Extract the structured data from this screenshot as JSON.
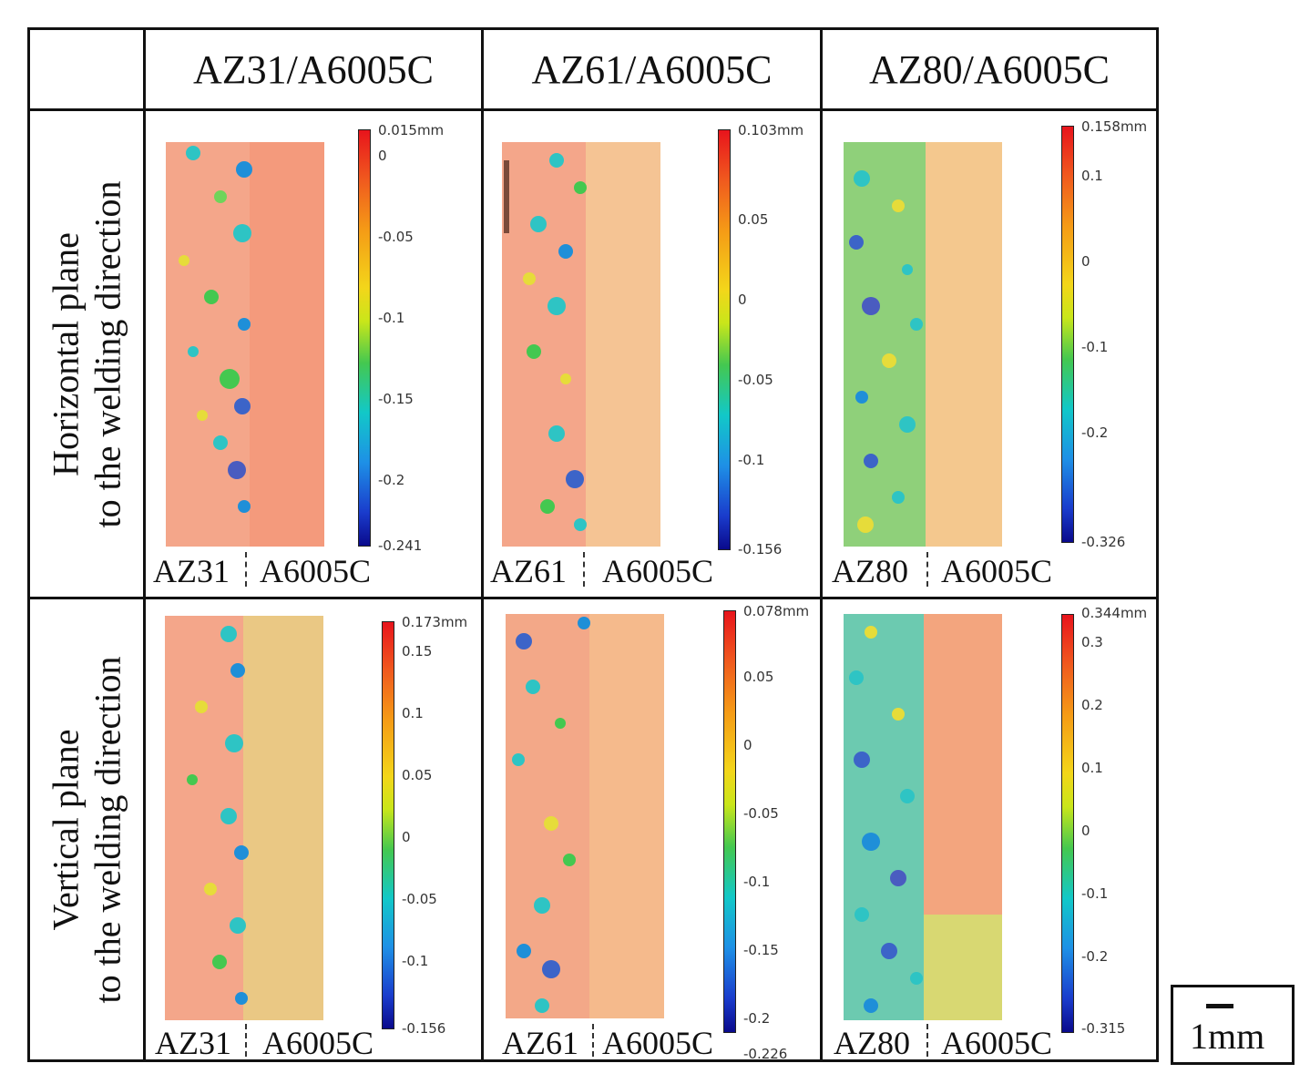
{
  "columns": [
    "AZ31/A6005C",
    "AZ61/A6005C",
    "AZ80/A6005C"
  ],
  "rows": [
    {
      "label_line1": "Horizontal  plane",
      "label_line2": "to the welding direction"
    },
    {
      "label_line1": "Vertical plane",
      "label_line2": "to the welding direction"
    }
  ],
  "cells": [
    {
      "ticks": [
        "0.015mm",
        "0",
        "-0.05",
        "-0.1",
        "-0.15",
        "-0.2",
        "-0.241"
      ],
      "left_material": "AZ31",
      "right_material": "A6005C",
      "fill": "#f49a7c"
    },
    {
      "ticks": [
        "0.103mm",
        "0.05",
        "0",
        "-0.05",
        "-0.1",
        "-0.156"
      ],
      "left_material": "AZ61",
      "right_material": "A6005C",
      "fill": "#f5c494"
    },
    {
      "ticks": [
        "0.158mm",
        "0.1",
        "0",
        "-0.1",
        "-0.2",
        "-0.326"
      ],
      "left_material": "AZ80",
      "right_material": "A6005C",
      "fill": "#f4c88e"
    },
    {
      "ticks": [
        "0.173mm",
        "0.15",
        "0.1",
        "0.05",
        "0",
        "-0.05",
        "-0.1",
        "-0.156"
      ],
      "left_material": "AZ31",
      "right_material": "A6005C",
      "fill": "#eac884"
    },
    {
      "ticks": [
        "0.078mm",
        "0.05",
        "0",
        "-0.05",
        "-0.1",
        "-0.15",
        "-0.2",
        "-0.226"
      ],
      "left_material": "AZ61",
      "right_material": "A6005C",
      "fill": "#f5ba8c"
    },
    {
      "ticks": [
        "0.344mm",
        "0.3",
        "0.2",
        "0.1",
        "0",
        "-0.1",
        "-0.2",
        "-0.315"
      ],
      "left_material": "AZ80",
      "right_material": "A6005C",
      "fill": "#f3a57e"
    }
  ],
  "scale_bar": {
    "label": "1mm"
  }
}
